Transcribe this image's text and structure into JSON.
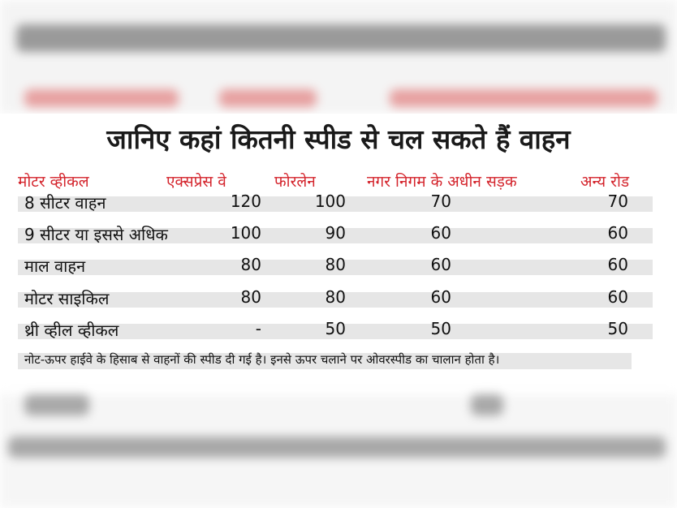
{
  "title": "जानिए कहां कितनी स्पीड से चल सकते हैं वाहन",
  "columns": [
    "मोटर व्हीकल",
    "एक्सप्रेस वे",
    "फोरलेन",
    "नगर निगम के अधीन सड़क",
    "अन्य रोड"
  ],
  "rows": [
    {
      "vehicle": "8 सीटर वाहन",
      "expressway": "120",
      "fourlane": "100",
      "municipal": "70",
      "other": "70"
    },
    {
      "vehicle": "9 सीटर या इससे अधिक",
      "expressway": "100",
      "fourlane": "90",
      "municipal": "60",
      "other": "60"
    },
    {
      "vehicle": "माल वाहन",
      "expressway": "80",
      "fourlane": "80",
      "municipal": "60",
      "other": "60"
    },
    {
      "vehicle": "मोटर साइकिल",
      "expressway": "80",
      "fourlane": "80",
      "municipal": "60",
      "other": "60"
    },
    {
      "vehicle": "थ्री व्हील व्हीकल",
      "expressway": "-",
      "fourlane": "50",
      "municipal": "50",
      "other": "50"
    }
  ],
  "note": "नोट-ऊपर हाईवे के हिसाब से वाहनों की स्पीड दी गई है। इनसे ऊपर चलाने पर ओवरस्पीड का चालान होता है।",
  "colors": {
    "header": "#d4242c",
    "row_band": "#e6e6e6",
    "text": "#111111"
  }
}
